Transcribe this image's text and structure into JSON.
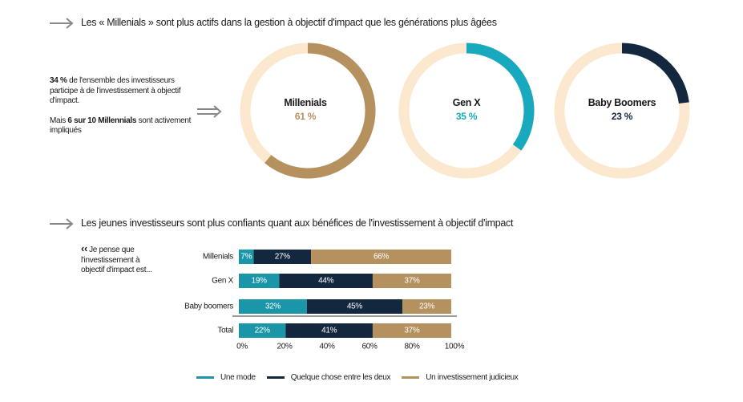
{
  "section1": {
    "heading": "Les « Millenials » sont plus actifs dans la gestion à objectif d'impact que les générations plus âgées",
    "intro_p1_bold": "34 %",
    "intro_p1_text": " de l'ensemble des investisseurs participe à de l'investissement à objectif d'impact.",
    "intro_p2_a": "Mais ",
    "intro_p2_bold": "6 sur 10 Millennials",
    "intro_p2_b": " sont activement impliqués"
  },
  "section2": {
    "heading": "Les jeunes investisseurs sont plus confiants quant aux bénéfices de l'investissement à objectif d'impact",
    "quote_mark": "‹‹",
    "quote_text": "Je pense que l'investissement à objectif d'impact est..."
  },
  "colors": {
    "track": "#fbe8cf",
    "millenials": "#b5915f",
    "genx": "#19a9be",
    "boomers": "#13273f",
    "teal": "#1b96a8",
    "navy": "#13273f",
    "tan": "#b5915f",
    "arrow": "#888888"
  },
  "chart_data": [
    {
      "type": "pie",
      "donuts": [
        {
          "name": "Millenials",
          "value": 61,
          "label": "61 %",
          "color": "#b5915f"
        },
        {
          "name": "Gen X",
          "value": 35,
          "label": "35 %",
          "color": "#19a9be"
        },
        {
          "name": "Baby Boomers",
          "value": 23,
          "label": "23 %",
          "color": "#13273f"
        }
      ]
    },
    {
      "type": "bar",
      "orientation": "horizontal-stacked",
      "categories": [
        "Millenials",
        "Gen X",
        "Baby boomers",
        "Total"
      ],
      "series": [
        {
          "name": "Une mode",
          "values": [
            7,
            19,
            32,
            22
          ],
          "labels": [
            "7%",
            "19%",
            "32%",
            "22%"
          ],
          "color": "#1b96a8"
        },
        {
          "name": "Quelque chose entre les deux",
          "values": [
            27,
            44,
            45,
            41
          ],
          "labels": [
            "27%",
            "44%",
            "45%",
            "41%"
          ],
          "color": "#13273f"
        },
        {
          "name": "Un investissement judicieux",
          "values": [
            66,
            37,
            23,
            37
          ],
          "labels": [
            "66%",
            "37%",
            "23%",
            "37%"
          ],
          "color": "#b5915f"
        }
      ],
      "xlim": [
        0,
        100
      ],
      "xticks": [
        "0%",
        "20%",
        "40%",
        "60%",
        "80%",
        "100%"
      ],
      "legend_position": "bottom"
    }
  ]
}
